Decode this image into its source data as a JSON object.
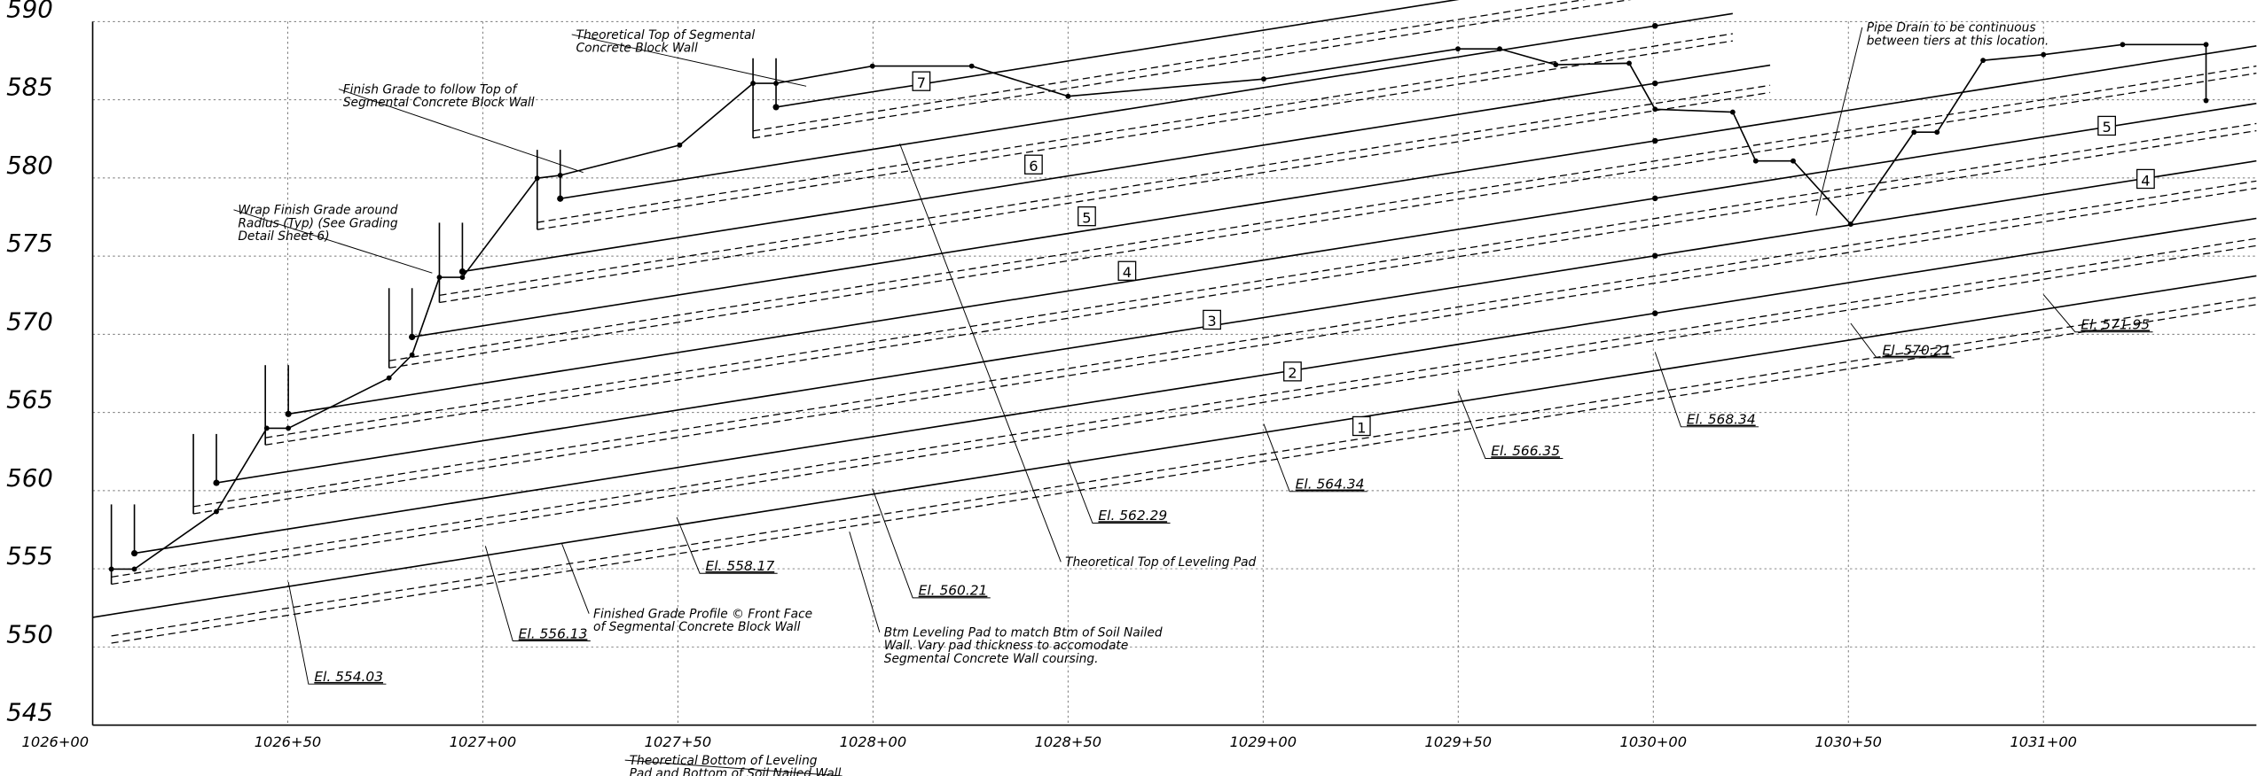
{
  "axis": {
    "elevations": [
      "590",
      "585",
      "580",
      "575",
      "570",
      "565",
      "560",
      "555",
      "550",
      "545"
    ],
    "stations": [
      "1026+00",
      "1026+50",
      "1027+00",
      "1027+50",
      "1028+00",
      "1028+50",
      "1029+00",
      "1029+50",
      "1030+00",
      "1030+50",
      "1031+00"
    ]
  },
  "tiers": [
    "7",
    "6",
    "5",
    "4",
    "3",
    "2",
    "1",
    "5",
    "4"
  ],
  "elevation_callouts": [
    "El. 554.03",
    "El. 556.13",
    "El. 558.17",
    "El. 560.21",
    "El. 562.29",
    "El. 564.34",
    "El. 566.35",
    "El. 568.34",
    "El. 570.21",
    "El. 571.95"
  ],
  "notes": [
    {
      "lines": [
        "Theoretical Top of Segmental",
        "Concrete Block Wall"
      ]
    },
    {
      "lines": [
        "Finish Grade to follow Top of",
        "Segmental Concrete Block Wall"
      ]
    },
    {
      "lines": [
        "Wrap Finish Grade around",
        "Radius (Typ) (See Grading",
        "Detail Sheet 6)"
      ]
    },
    {
      "lines": [
        "Finished Grade Profile © Front Face",
        "of Segmental Concrete Block Wall"
      ]
    },
    {
      "lines": [
        "Btm Leveling Pad to match Btm of Soil Nailed",
        "Wall.  Vary pad thickness to accomodate",
        "Segmental Concrete Wall coursing."
      ]
    },
    {
      "lines": [
        "Theoretical Top of Leveling Pad"
      ]
    },
    {
      "lines": [
        "Pipe Drain to be continuous",
        "between tiers at this location."
      ]
    },
    {
      "lines": [
        "Theoretical Bottom of Leveling",
        "Pad and Bottom of Soil Nailed Wall"
      ]
    }
  ]
}
